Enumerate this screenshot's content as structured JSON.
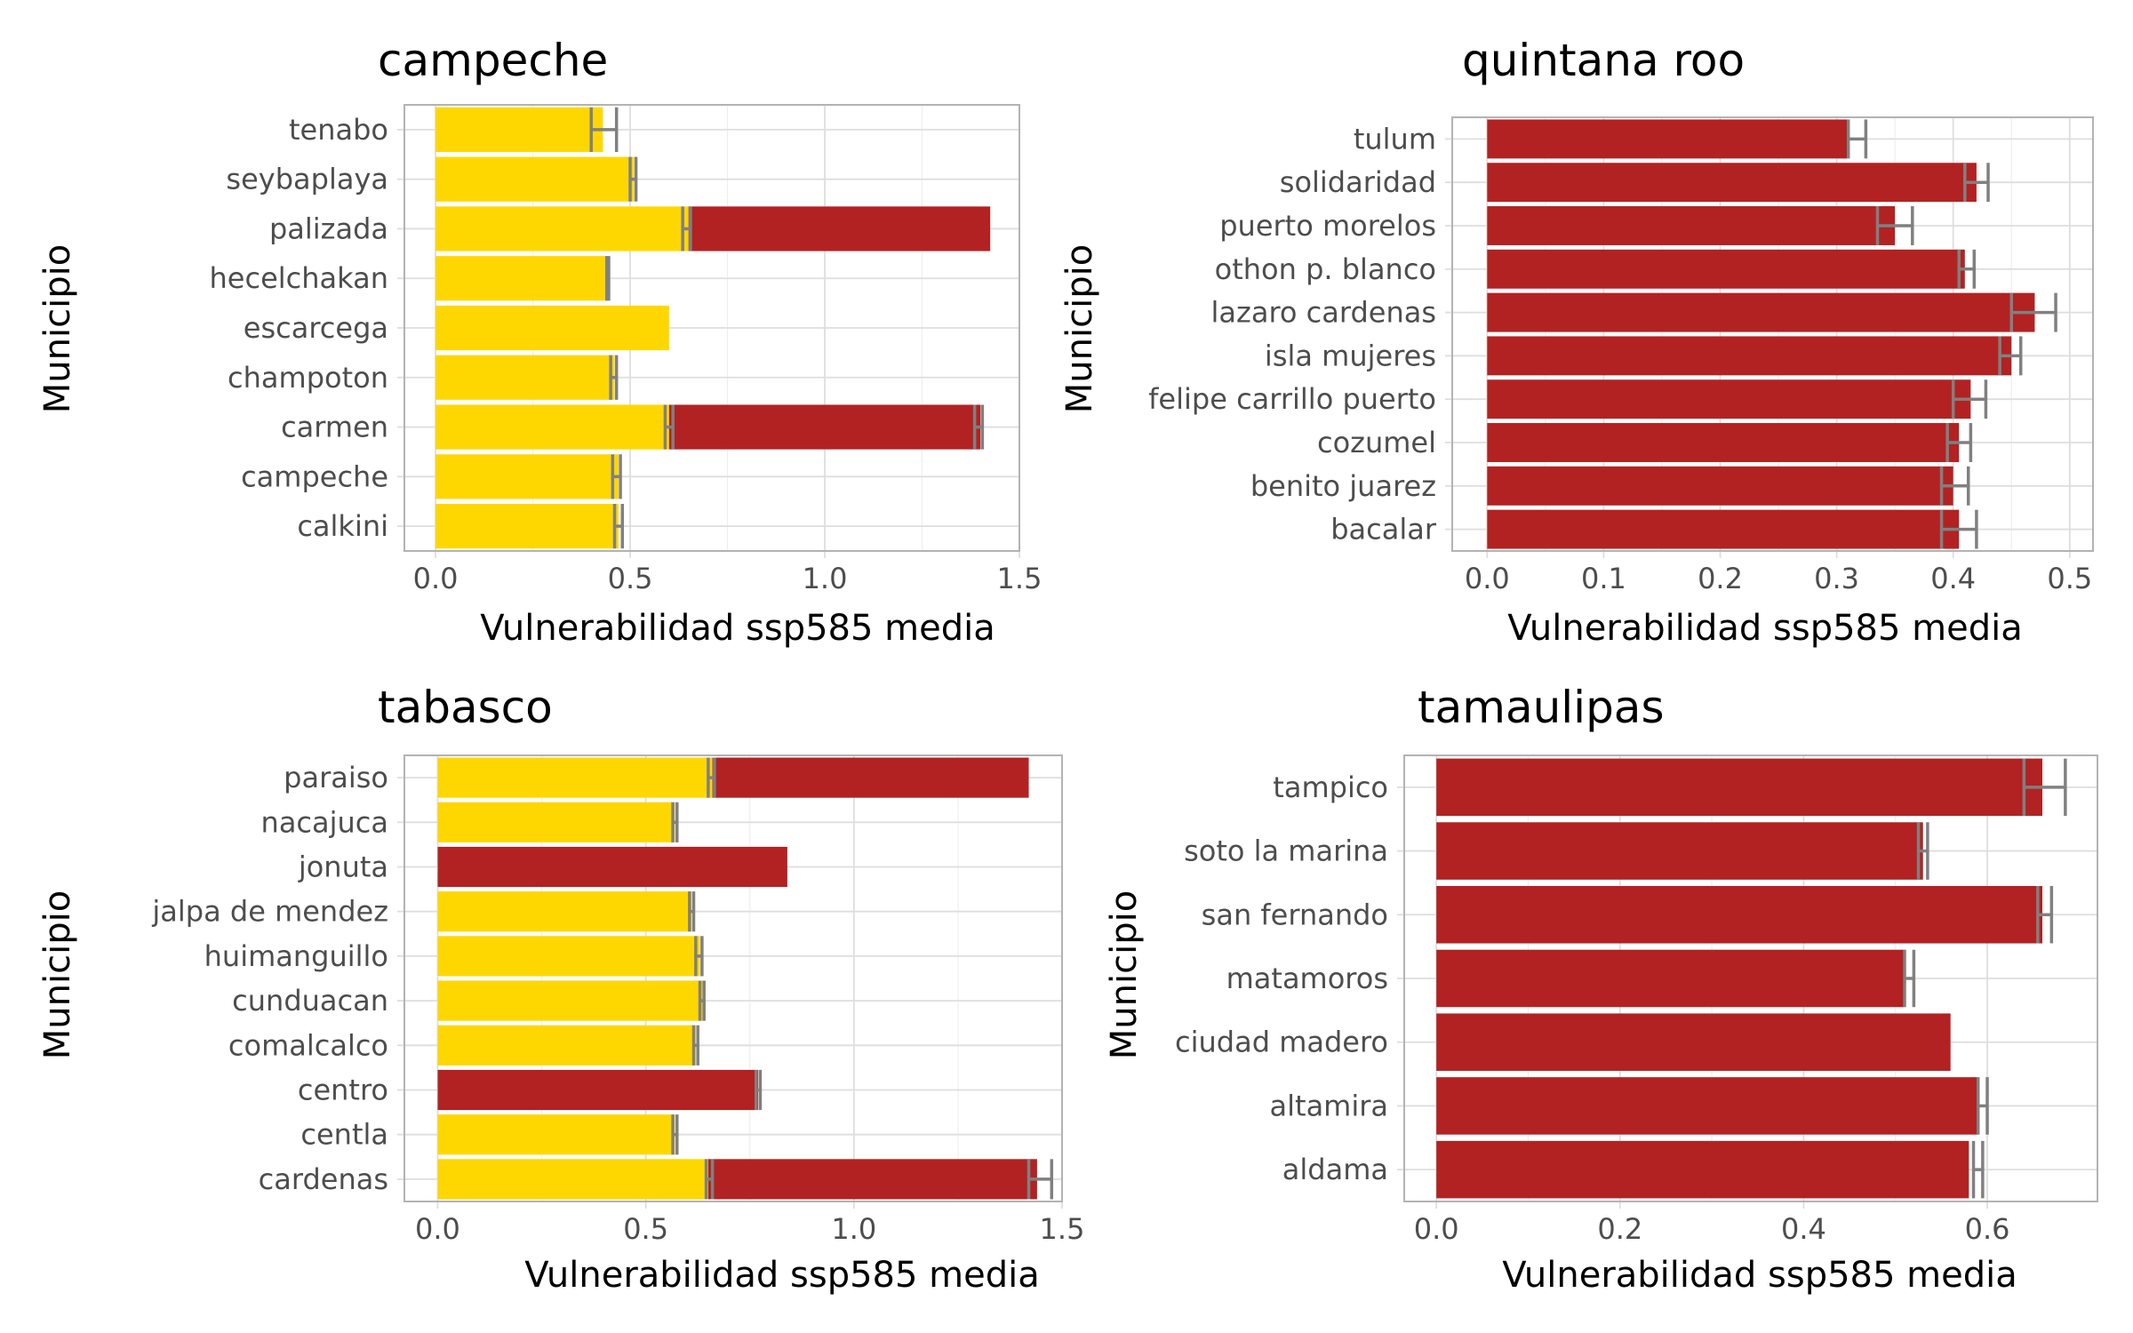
{
  "colors": {
    "yellow": "#FFD700",
    "red": "#B22222",
    "errorbar": "#808080",
    "grid_major": "#DEDEDE",
    "grid_minor": "#EEEEEE",
    "panel_border": "#B3B3B3"
  },
  "chart_data": [
    {
      "type": "bar",
      "orientation": "horizontal",
      "stacked": true,
      "title": "campeche",
      "xlabel": "Vulnerabilidad ssp585 media",
      "ylabel": "Municipio",
      "xlim": [
        -0.08,
        1.5
      ],
      "xticks": [
        0.0,
        0.5,
        1.0,
        1.5
      ],
      "xtick_labels": [
        "0.0",
        "0.5",
        "1.0",
        "1.5"
      ],
      "grid": true,
      "categories": [
        "tenabo",
        "seybaplaya",
        "palizada",
        "hecelchakan",
        "escarcega",
        "champoton",
        "carmen",
        "campeche",
        "calkini"
      ],
      "series": [
        {
          "color": "yellow",
          "values": [
            0.43,
            0.51,
            0.65,
            0.44,
            0.6,
            0.46,
            0.6,
            0.47,
            0.47
          ],
          "err_low": [
            0.4,
            0.5,
            0.635,
            0.44,
            null,
            0.45,
            0.59,
            0.455,
            0.46
          ],
          "err_high": [
            0.465,
            0.515,
            0.655,
            0.445,
            null,
            0.465,
            0.61,
            0.475,
            0.48
          ]
        },
        {
          "color": "red",
          "values": [
            0,
            0,
            0.775,
            0,
            0,
            0,
            0.8,
            0,
            0
          ],
          "err_low": [
            null,
            null,
            null,
            null,
            null,
            null,
            0.785,
            null,
            null
          ],
          "err_high": [
            null,
            null,
            null,
            null,
            null,
            null,
            0.805,
            null,
            null
          ]
        }
      ]
    },
    {
      "type": "bar",
      "orientation": "horizontal",
      "stacked": true,
      "title": "quintana roo",
      "xlabel": "Vulnerabilidad ssp585 media",
      "ylabel": "Municipio",
      "xlim": [
        -0.03,
        0.52
      ],
      "xticks": [
        0.0,
        0.1,
        0.2,
        0.3,
        0.4,
        0.5
      ],
      "xtick_labels": [
        "0.0",
        "0.1",
        "0.2",
        "0.3",
        "0.4",
        "0.5"
      ],
      "grid": true,
      "categories": [
        "tulum",
        "solidaridad",
        "puerto morelos",
        "othon p. blanco",
        "lazaro cardenas",
        "isla mujeres",
        "felipe carrillo puerto",
        "cozumel",
        "benito juarez",
        "bacalar"
      ],
      "series": [
        {
          "color": "red",
          "values": [
            0.31,
            0.42,
            0.35,
            0.41,
            0.47,
            0.45,
            0.415,
            0.405,
            0.4,
            0.405
          ],
          "err_low": [
            0.31,
            0.41,
            0.335,
            0.405,
            0.45,
            0.44,
            0.4,
            0.395,
            0.39,
            0.39
          ],
          "err_high": [
            0.325,
            0.43,
            0.365,
            0.418,
            0.488,
            0.458,
            0.428,
            0.415,
            0.413,
            0.42
          ]
        }
      ]
    },
    {
      "type": "bar",
      "orientation": "horizontal",
      "stacked": true,
      "title": "tabasco",
      "xlabel": "Vulnerabilidad ssp585 media",
      "ylabel": "Municipio",
      "xlim": [
        -0.08,
        1.5
      ],
      "xticks": [
        0.0,
        0.5,
        1.0,
        1.5
      ],
      "xtick_labels": [
        "0.0",
        "0.5",
        "1.0",
        "1.5"
      ],
      "grid": true,
      "categories": [
        "paraiso",
        "nacajuca",
        "jonuta",
        "jalpa de mendez",
        "huimanguillo",
        "cunduacan",
        "comalcalco",
        "centro",
        "centla",
        "cardenas"
      ],
      "series": [
        {
          "color": "yellow",
          "values": [
            0.66,
            0.57,
            0,
            0.61,
            0.63,
            0.64,
            0.62,
            0,
            0.57,
            0.65
          ],
          "err_low": [
            0.65,
            0.565,
            null,
            0.605,
            0.62,
            0.63,
            0.615,
            null,
            0.565,
            0.645
          ],
          "err_high": [
            0.665,
            0.575,
            null,
            0.615,
            0.635,
            0.64,
            0.625,
            null,
            0.575,
            0.66
          ]
        },
        {
          "color": "red",
          "values": [
            0.76,
            0,
            0.84,
            0,
            0,
            0,
            0,
            0.77,
            0,
            0.79
          ],
          "err_low": [
            null,
            null,
            null,
            null,
            null,
            null,
            null,
            0.765,
            null,
            0.77
          ],
          "err_high": [
            null,
            null,
            null,
            null,
            null,
            null,
            null,
            0.775,
            null,
            0.825
          ]
        }
      ]
    },
    {
      "type": "bar",
      "orientation": "horizontal",
      "stacked": true,
      "title": "tamaulipas",
      "xlabel": "Vulnerabilidad ssp585 media",
      "ylabel": "Municipio",
      "xlim": [
        -0.035,
        0.72
      ],
      "xticks": [
        0.0,
        0.2,
        0.4,
        0.6
      ],
      "xtick_labels": [
        "0.0",
        "0.2",
        "0.4",
        "0.6"
      ],
      "grid": true,
      "categories": [
        "tampico",
        "soto la marina",
        "san fernando",
        "matamoros",
        "ciudad madero",
        "altamira",
        "aldama"
      ],
      "series": [
        {
          "color": "red",
          "values": [
            0.66,
            0.53,
            0.66,
            0.51,
            0.56,
            0.59,
            0.58
          ],
          "err_low": [
            0.64,
            0.525,
            0.655,
            0.51,
            null,
            0.59,
            0.585
          ],
          "err_high": [
            0.685,
            0.535,
            0.67,
            0.52,
            null,
            0.6,
            0.595
          ]
        }
      ]
    }
  ]
}
